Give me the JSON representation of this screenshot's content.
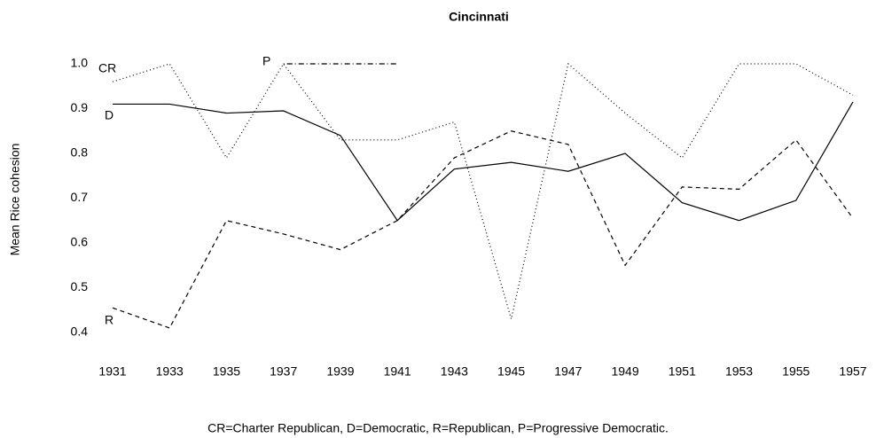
{
  "chart_data": {
    "type": "line",
    "title": "Cincinnati",
    "ylabel": "Mean Rice cohesion",
    "footnote": "CR=Charter Republican, D=Democratic, R=Republican, P=Progressive Democratic.",
    "x": [
      1931,
      1933,
      1935,
      1937,
      1939,
      1941,
      1943,
      1945,
      1947,
      1949,
      1951,
      1953,
      1955,
      1957
    ],
    "xlim": [
      1931,
      1957
    ],
    "ylim": [
      0.4,
      1.0
    ],
    "yticks": [
      0.4,
      0.5,
      0.6,
      0.7,
      0.8,
      0.9,
      {
        "value": 1,
        "label": "1.0"
      }
    ],
    "series": [
      {
        "name": "CR",
        "color": "#000000",
        "dash": "dotted",
        "values": [
          0.96,
          1.0,
          0.79,
          1.0,
          0.83,
          0.83,
          0.87,
          0.43,
          1.0,
          0.89,
          0.79,
          1.0,
          1.0,
          0.93
        ]
      },
      {
        "name": "D",
        "color": "#000000",
        "dash": "solid",
        "values": [
          0.91,
          0.91,
          0.89,
          0.895,
          0.84,
          0.65,
          0.765,
          0.78,
          0.76,
          0.8,
          0.69,
          0.65,
          0.695,
          0.915
        ]
      },
      {
        "name": "R",
        "color": "#000000",
        "dash": "dashed",
        "values": [
          0.455,
          0.41,
          0.65,
          0.62,
          0.585,
          0.65,
          0.79,
          0.85,
          0.82,
          0.55,
          0.725,
          0.72,
          0.83,
          0.655
        ]
      },
      {
        "name": "P",
        "color": "#000000",
        "dash": "dotdash",
        "values": [
          null,
          null,
          null,
          1.0,
          1.0,
          1.0,
          null,
          null,
          null,
          null,
          null,
          null,
          null,
          null
        ]
      }
    ]
  }
}
